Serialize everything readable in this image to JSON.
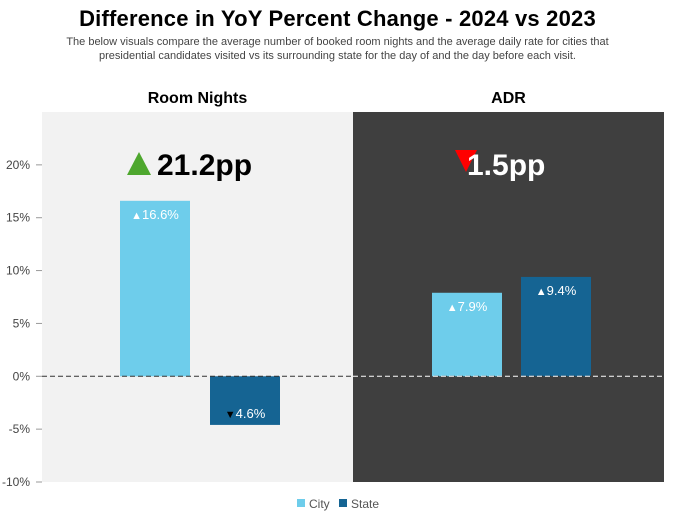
{
  "title": "Difference in YoY Percent Change - 2024 vs 2023",
  "subtitle": "The below visuals compare the average number of booked room nights and the average daily rate for cities that presidential candidates visited vs its surrounding state for the day of and the day before each visit.",
  "colors": {
    "city": "#6ecdeb",
    "state": "#156493",
    "left_panel_bg": "#f2f2f2",
    "right_panel_bg": "#3f3f3f",
    "up_arrow": "#4ea72e",
    "down_arrow": "#ff0000"
  },
  "chart_data": {
    "type": "bar",
    "ylim": [
      -10,
      25
    ],
    "yticks": [
      -10,
      -5,
      0,
      5,
      10,
      15,
      20
    ],
    "ytick_labels": [
      "-10%",
      "-5%",
      "0%",
      "5%",
      "10%",
      "15%",
      "20%"
    ],
    "legend": {
      "position": "bottom",
      "items": [
        {
          "name": "City",
          "color": "#6ecdeb"
        },
        {
          "name": "State",
          "color": "#156493"
        }
      ]
    },
    "panels": [
      {
        "title": "Room Nights",
        "difference": "21.2pp",
        "direction": "up",
        "bars": [
          {
            "series": "City",
            "value": 16.6,
            "label": "16.6%",
            "arrow": "▲"
          },
          {
            "series": "State",
            "value": -4.6,
            "label": "4.6%",
            "arrow": "▼"
          }
        ]
      },
      {
        "title": "ADR",
        "difference": "1.5pp",
        "direction": "down",
        "bars": [
          {
            "series": "City",
            "value": 7.9,
            "label": "7.9%",
            "arrow": "▲"
          },
          {
            "series": "State",
            "value": 9.4,
            "label": "9.4%",
            "arrow": "▲"
          }
        ]
      }
    ]
  }
}
